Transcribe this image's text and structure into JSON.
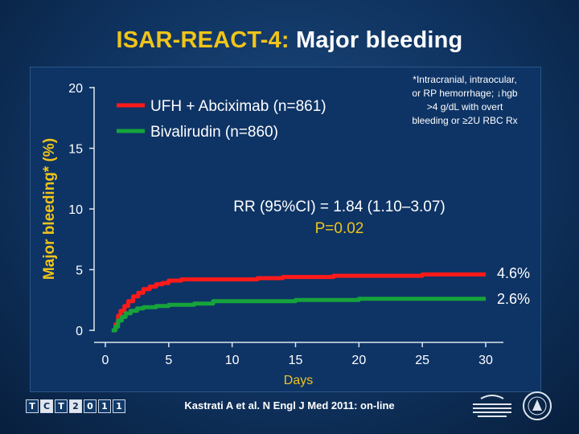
{
  "slide": {
    "title_prefix": "ISAR-REACT-4:",
    "title_suffix": "Major bleeding",
    "citation": "Kastrati A et al. N Engl J Med 2011: on-line",
    "logo_text": [
      "T",
      "C",
      "T",
      "2",
      "0",
      "1",
      "1"
    ]
  },
  "colors": {
    "accent_yellow": "#f0c419",
    "series_red": "#ff1a1a",
    "series_green": "#17a33b"
  },
  "chart_data": {
    "type": "line",
    "title": "",
    "xlabel": "Days",
    "ylabel": "Major bleeding* (%)",
    "xlim": [
      0,
      31
    ],
    "ylim": [
      0,
      20
    ],
    "xticks": [
      0,
      5,
      10,
      15,
      20,
      25,
      30
    ],
    "yticks": [
      0,
      5,
      10,
      15,
      20
    ],
    "grid": false,
    "legend_position": "top-left",
    "series": [
      {
        "name": "UFH + Abciximab (n=861)",
        "color": "#ff1a1a",
        "end_label": "4.6%",
        "points": [
          [
            0.5,
            0
          ],
          [
            0.8,
            0.5
          ],
          [
            1.0,
            1.2
          ],
          [
            1.2,
            1.6
          ],
          [
            1.5,
            2.0
          ],
          [
            1.8,
            2.4
          ],
          [
            2.2,
            2.8
          ],
          [
            2.6,
            3.1
          ],
          [
            3.0,
            3.4
          ],
          [
            3.5,
            3.6
          ],
          [
            4.0,
            3.8
          ],
          [
            4.5,
            3.9
          ],
          [
            5.0,
            4.1
          ],
          [
            6.0,
            4.2
          ],
          [
            8.0,
            4.2
          ],
          [
            10.0,
            4.2
          ],
          [
            12.0,
            4.3
          ],
          [
            14.0,
            4.4
          ],
          [
            16.0,
            4.4
          ],
          [
            18.0,
            4.5
          ],
          [
            20.0,
            4.5
          ],
          [
            25.0,
            4.6
          ],
          [
            30.0,
            4.6
          ]
        ]
      },
      {
        "name": "Bivalirudin (n=860)",
        "color": "#17a33b",
        "end_label": "2.6%",
        "points": [
          [
            0.5,
            0
          ],
          [
            0.8,
            0.3
          ],
          [
            1.0,
            0.8
          ],
          [
            1.3,
            1.1
          ],
          [
            1.6,
            1.4
          ],
          [
            2.0,
            1.6
          ],
          [
            2.5,
            1.8
          ],
          [
            3.0,
            1.9
          ],
          [
            4.0,
            2.0
          ],
          [
            5.0,
            2.1
          ],
          [
            7.0,
            2.2
          ],
          [
            8.5,
            2.4
          ],
          [
            10.0,
            2.4
          ],
          [
            12.0,
            2.4
          ],
          [
            15.0,
            2.5
          ],
          [
            20.0,
            2.6
          ],
          [
            25.0,
            2.6
          ],
          [
            30.0,
            2.6
          ]
        ]
      }
    ],
    "annotations": {
      "footnote": [
        "*Intracranial, intraocular,",
        "or RP hemorrhage; ↓hgb",
        ">4 g/dL with overt",
        "bleeding or ≥2U RBC Rx"
      ],
      "rr_text": "RR (95%CI) = 1.84 (1.10–3.07)",
      "p_text": "P=0.02"
    }
  }
}
